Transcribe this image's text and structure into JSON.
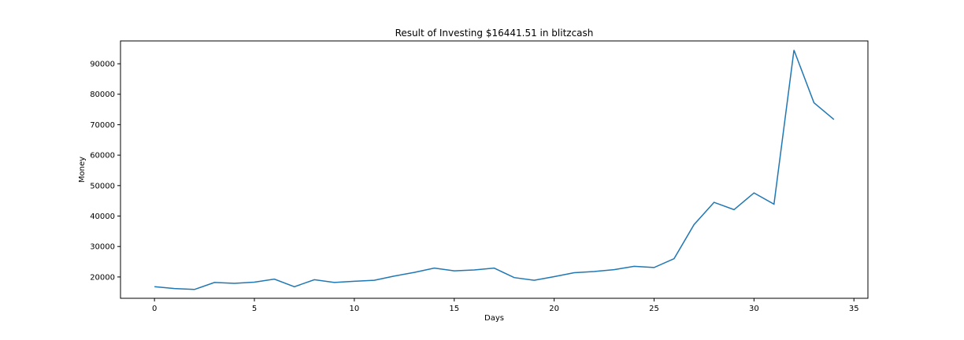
{
  "chart_data": {
    "type": "line",
    "title": "Result of Investing $16441.51 in blitzcash",
    "xlabel": "Days",
    "ylabel": "Money",
    "xlim": [
      -1.7,
      35.7
    ],
    "ylim": [
      13000,
      97500
    ],
    "xticks": [
      0,
      5,
      10,
      15,
      20,
      25,
      30,
      35
    ],
    "yticks": [
      20000,
      30000,
      40000,
      50000,
      60000,
      70000,
      80000,
      90000
    ],
    "grid": false,
    "series": [
      {
        "color": "#1f77b4",
        "x": [
          0,
          1,
          2,
          3,
          4,
          5,
          6,
          7,
          8,
          9,
          10,
          11,
          12,
          13,
          14,
          15,
          16,
          17,
          18,
          19,
          20,
          21,
          22,
          23,
          24,
          25,
          26,
          27,
          28,
          29,
          30,
          31,
          32,
          33,
          34
        ],
        "values": [
          16800,
          16200,
          15900,
          18200,
          17900,
          18300,
          19300,
          16800,
          19100,
          18200,
          18600,
          18900,
          20300,
          21500,
          22900,
          22000,
          22300,
          22900,
          19800,
          18900,
          20100,
          21400,
          21800,
          22400,
          23500,
          23100,
          26000,
          37200,
          44500,
          42100,
          47600,
          43900,
          94500,
          77200,
          71700
        ]
      }
    ]
  }
}
